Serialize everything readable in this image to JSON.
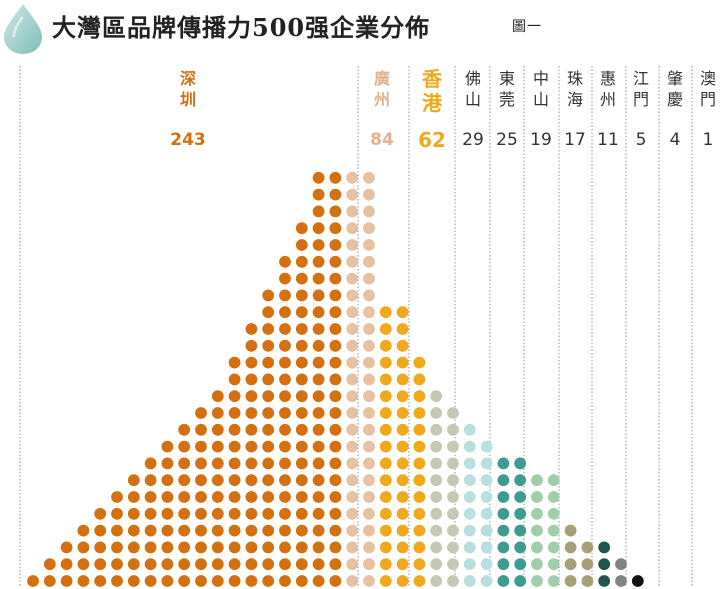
{
  "header": {
    "title": "大灣區品牌傳播力500强企業分佈",
    "figure_label": "圖一"
  },
  "chart_data": {
    "type": "dot-matrix",
    "title": "大灣區品牌傳播力500强企業分佈",
    "unit_per_dot": 1,
    "categories": [
      "深圳",
      "廣州",
      "香港",
      "佛山",
      "東莞",
      "中山",
      "珠海",
      "惠州",
      "江門",
      "肇慶",
      "澳門"
    ],
    "values": [
      243,
      84,
      62,
      29,
      25,
      19,
      17,
      11,
      5,
      4,
      1
    ],
    "value_labels": [
      "243",
      "84",
      "62",
      "29",
      "25",
      "19",
      "17",
      "11",
      "5",
      "4",
      "1"
    ],
    "colors": [
      "#d4700f",
      "#e6c1a2",
      "#f0a81d",
      "#c5c8b4",
      "#b7dfe0",
      "#3e9b94",
      "#9ecfa8",
      "#a8a074",
      "#22544f",
      "#7f8583",
      "#111111"
    ],
    "label_colors": [
      "#d4700f",
      "#e0b38e",
      "#f0a81d",
      "#333333",
      "#333333",
      "#333333",
      "#333333",
      "#333333",
      "#333333",
      "#333333",
      "#333333"
    ],
    "column_heights": [
      [
        1,
        2,
        3,
        4,
        5,
        6,
        7,
        8,
        9,
        10,
        11,
        12,
        12,
        13,
        14,
        15,
        16,
        17,
        18,
        19,
        20,
        21,
        22,
        24,
        24,
        24,
        24,
        24,
        24,
        24,
        24,
        24,
        24,
        24,
        24,
        24,
        24,
        24,
        24
      ],
      [
        24,
        24,
        24,
        24,
        24,
        24,
        24,
        24,
        24,
        24,
        24,
        24,
        24,
        24,
        24,
        24,
        24,
        24,
        24,
        24,
        24,
        24,
        24,
        24,
        24,
        24,
        24,
        24,
        24,
        24,
        24,
        24,
        24,
        24,
        24,
        24,
        24,
        24,
        24
      ],
      [
        17,
        17,
        17,
        17,
        17,
        17,
        17,
        17,
        17,
        17,
        17,
        17,
        17,
        17,
        17,
        17,
        17,
        17,
        17,
        17,
        17,
        17,
        17,
        17,
        17,
        17,
        17,
        17,
        17,
        17,
        17,
        17,
        17,
        17,
        17,
        17,
        17,
        17,
        17,
        17,
        17,
        17,
        17,
        17,
        17,
        17,
        17,
        17,
        17,
        17,
        17,
        17,
        17,
        17,
        17,
        17,
        17,
        17,
        17,
        17,
        17,
        17,
        17,
        17,
        17,
        17,
        17,
        17,
        17,
        17,
        17,
        17,
        17,
        17,
        17,
        17,
        17,
        17,
        17,
        17,
        17,
        17,
        17,
        17
      ],
      [
        17,
        17,
        15,
        15,
        15,
        15,
        15,
        15,
        15,
        15,
        15,
        15,
        15,
        15,
        15,
        15,
        15,
        15,
        15,
        15,
        15,
        15,
        15,
        15,
        15,
        15,
        15,
        15,
        15,
        15,
        15,
        15,
        15,
        15,
        15,
        15,
        15,
        15,
        15,
        15,
        15,
        15,
        15,
        15,
        15,
        15,
        15,
        15,
        15,
        15,
        15,
        15,
        15,
        15,
        15,
        15,
        15,
        15,
        15,
        15,
        15,
        15,
        15,
        15
      ],
      [
        12,
        11,
        11,
        11,
        11,
        11,
        11,
        11,
        11,
        11,
        11,
        11,
        11,
        11,
        11,
        11,
        11,
        11,
        11,
        11,
        11,
        11,
        11,
        11,
        11,
        11,
        11,
        11,
        11,
        11,
        11,
        11,
        11,
        11,
        11,
        11,
        11,
        11,
        11,
        11,
        11,
        11,
        11,
        11,
        11,
        11,
        11,
        11,
        11,
        11,
        11,
        11,
        11,
        11,
        11,
        11,
        11,
        11,
        11,
        11,
        11,
        11,
        11,
        11,
        11
      ],
      [
        10,
        9
      ],
      [
        9,
        8
      ],
      [
        7,
        6
      ],
      [
        5,
        5
      ],
      [
        4
      ],
      [
        3
      ],
      [
        2
      ],
      [
        1
      ]
    ]
  }
}
